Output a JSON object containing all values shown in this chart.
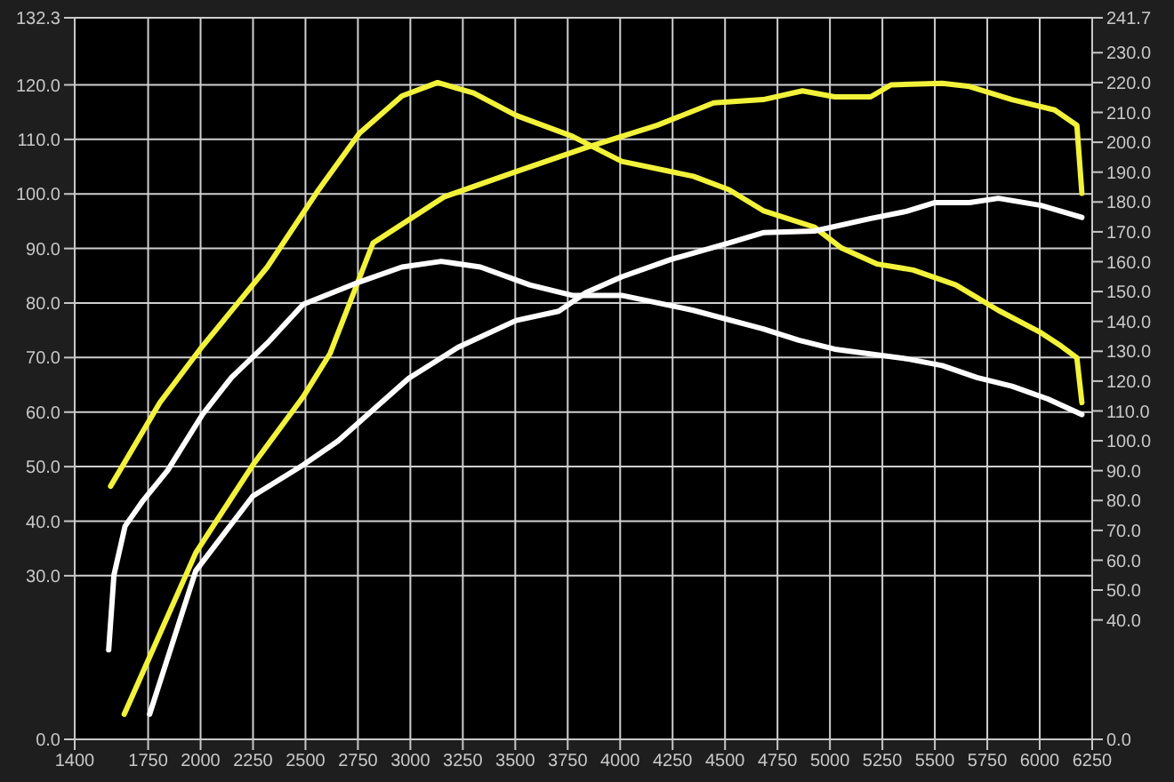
{
  "chart_data": {
    "type": "line",
    "xlim": [
      1400,
      6250
    ],
    "xticks": [
      1400,
      1750,
      2000,
      2250,
      2500,
      2750,
      3000,
      3250,
      3500,
      3750,
      4000,
      4250,
      4500,
      4750,
      5000,
      5250,
      5500,
      5750,
      6000,
      6250
    ],
    "ylim": [
      0,
      132.3
    ],
    "yticks": [
      {
        "value": 0,
        "label": "0.0"
      },
      {
        "value": 30,
        "label": "30.0"
      },
      {
        "value": 40,
        "label": "40.0"
      },
      {
        "value": 50,
        "label": "50.0"
      },
      {
        "value": 60,
        "label": "60.0"
      },
      {
        "value": 70,
        "label": "70.0"
      },
      {
        "value": 80,
        "label": "80.0"
      },
      {
        "value": 90,
        "label": "90.0"
      },
      {
        "value": 100,
        "label": "100.0"
      },
      {
        "value": 110,
        "label": "110.0"
      },
      {
        "value": 120,
        "label": "120.0"
      },
      {
        "value": 132.3,
        "label": "132.3"
      }
    ],
    "y2lim": [
      0,
      241.7
    ],
    "y2ticks": [
      {
        "value": 0,
        "label": "0.0"
      },
      {
        "value": 40,
        "label": "40.0"
      },
      {
        "value": 50,
        "label": "50.0"
      },
      {
        "value": 60,
        "label": "60.0"
      },
      {
        "value": 70,
        "label": "70.0"
      },
      {
        "value": 80,
        "label": "80.0"
      },
      {
        "value": 90,
        "label": "90.0"
      },
      {
        "value": 100,
        "label": "100.0"
      },
      {
        "value": 110,
        "label": "110.0"
      },
      {
        "value": 120,
        "label": "120.0"
      },
      {
        "value": 130,
        "label": "130.0"
      },
      {
        "value": 140,
        "label": "140.0"
      },
      {
        "value": 150,
        "label": "150.0"
      },
      {
        "value": 160,
        "label": "160.0"
      },
      {
        "value": 170,
        "label": "170.0"
      },
      {
        "value": 180,
        "label": "180.0"
      },
      {
        "value": 190,
        "label": "190.0"
      },
      {
        "value": 200,
        "label": "200.0"
      },
      {
        "value": 210,
        "label": "210.0"
      },
      {
        "value": 220,
        "label": "220.0"
      },
      {
        "value": 230,
        "label": "230.0"
      },
      {
        "value": 241.7,
        "label": "241.7"
      }
    ],
    "grid": true,
    "legend": false,
    "marker": "none",
    "line_style": "solid",
    "series": [
      {
        "color": "#f2f23a",
        "x": [
          1636,
          1977,
          2249,
          2489,
          2618,
          2822,
          3163,
          3504,
          3837,
          4178,
          4446,
          4682,
          4869,
          5023,
          5194,
          5291,
          5535,
          5665,
          5868,
          6071,
          6177,
          6201
        ],
        "values": [
          4.6,
          34.2,
          50.3,
          62.8,
          70.8,
          91.0,
          99.5,
          104.1,
          108.5,
          112.6,
          116.7,
          117.3,
          118.9,
          117.8,
          117.8,
          120.0,
          120.3,
          119.7,
          117.3,
          115.4,
          112.6,
          100.1
        ]
      },
      {
        "color": "#f2f23a",
        "axis": "y2",
        "x": [
          1571,
          1806,
          2009,
          2318,
          2553,
          2757,
          2960,
          3130,
          3301,
          3504,
          3772,
          4008,
          4349,
          4519,
          4682,
          4925,
          5055,
          5226,
          5397,
          5600,
          5803,
          6006,
          6103,
          6177,
          6201
        ],
        "values": [
          84.8,
          112.8,
          131.7,
          158.2,
          183.1,
          203.0,
          215.5,
          220.0,
          216.5,
          209.0,
          202.0,
          193.6,
          188.6,
          184.1,
          177.1,
          171.6,
          164.6,
          159.2,
          157.2,
          152.2,
          143.7,
          136.2,
          131.7,
          127.8,
          112.8
        ]
      },
      {
        "color": "#ffffff",
        "x": [
          1757,
          1977,
          2249,
          2489,
          2655,
          2822,
          2992,
          3228,
          3504,
          3707,
          3837,
          4008,
          4243,
          4519,
          4682,
          4925,
          5194,
          5364,
          5498,
          5665,
          5803,
          6006,
          6201
        ],
        "values": [
          4.6,
          30.9,
          44.6,
          50.3,
          54.7,
          60.4,
          66.2,
          71.9,
          76.8,
          78.5,
          81.9,
          84.8,
          88.0,
          91.0,
          92.9,
          93.2,
          95.5,
          96.8,
          98.4,
          98.4,
          99.2,
          97.9,
          95.7
        ]
      },
      {
        "color": "#ffffff",
        "axis": "y2",
        "x": [
          1562,
          1587,
          1640,
          1725,
          1843,
          2009,
          2147,
          2318,
          2489,
          2757,
          2960,
          3147,
          3334,
          3569,
          3772,
          4008,
          4349,
          4682,
          4852,
          5023,
          5364,
          5535,
          5701,
          5868,
          6039,
          6201
        ],
        "values": [
          30,
          55.0,
          71.4,
          79.9,
          90.1,
          108.8,
          121.2,
          132.7,
          145.7,
          153.2,
          158.2,
          160.1,
          158.2,
          152.2,
          148.7,
          148.7,
          143.7,
          137.5,
          133.7,
          130.7,
          127.5,
          125.2,
          121.2,
          118.3,
          114.0,
          108.8
        ]
      }
    ]
  }
}
